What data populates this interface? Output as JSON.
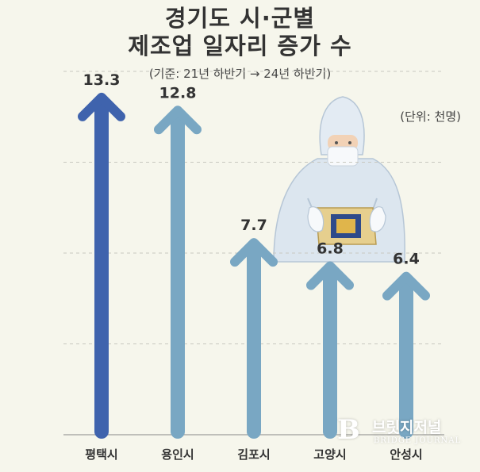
{
  "header": {
    "title_line1": "경기도 시·군별",
    "title_line2": "제조업 일자리 증가 수",
    "subtitle": "(기준: 21년 하반기 → 24년 하반기)",
    "unit": "(단위: 천명)"
  },
  "watermark": {
    "logo": "B",
    "name": "브릿지저널",
    "name_en": "BRIDGE JOURNAL"
  },
  "colors": {
    "background": "#f6f6ec",
    "highlight_bar": "#3f63ad",
    "bar": "#79a7c3",
    "gridline": "#c8c8c0",
    "text": "#333333"
  },
  "chart_data": {
    "type": "bar",
    "orientation": "vertical",
    "bar_style": "arrow",
    "categories": [
      "평택시",
      "용인시",
      "김포시",
      "고양시",
      "안성시"
    ],
    "values": [
      13.3,
      12.8,
      7.7,
      6.8,
      6.4
    ],
    "data_labels": [
      "13.3",
      "12.8",
      "7.7",
      "6.8",
      "6.4"
    ],
    "highlight_index": 0,
    "ylim": [
      0,
      14
    ],
    "grid": true,
    "title": "경기도 시·군별 제조업 일자리 증가 수",
    "xlabel": "",
    "ylabel": ""
  }
}
